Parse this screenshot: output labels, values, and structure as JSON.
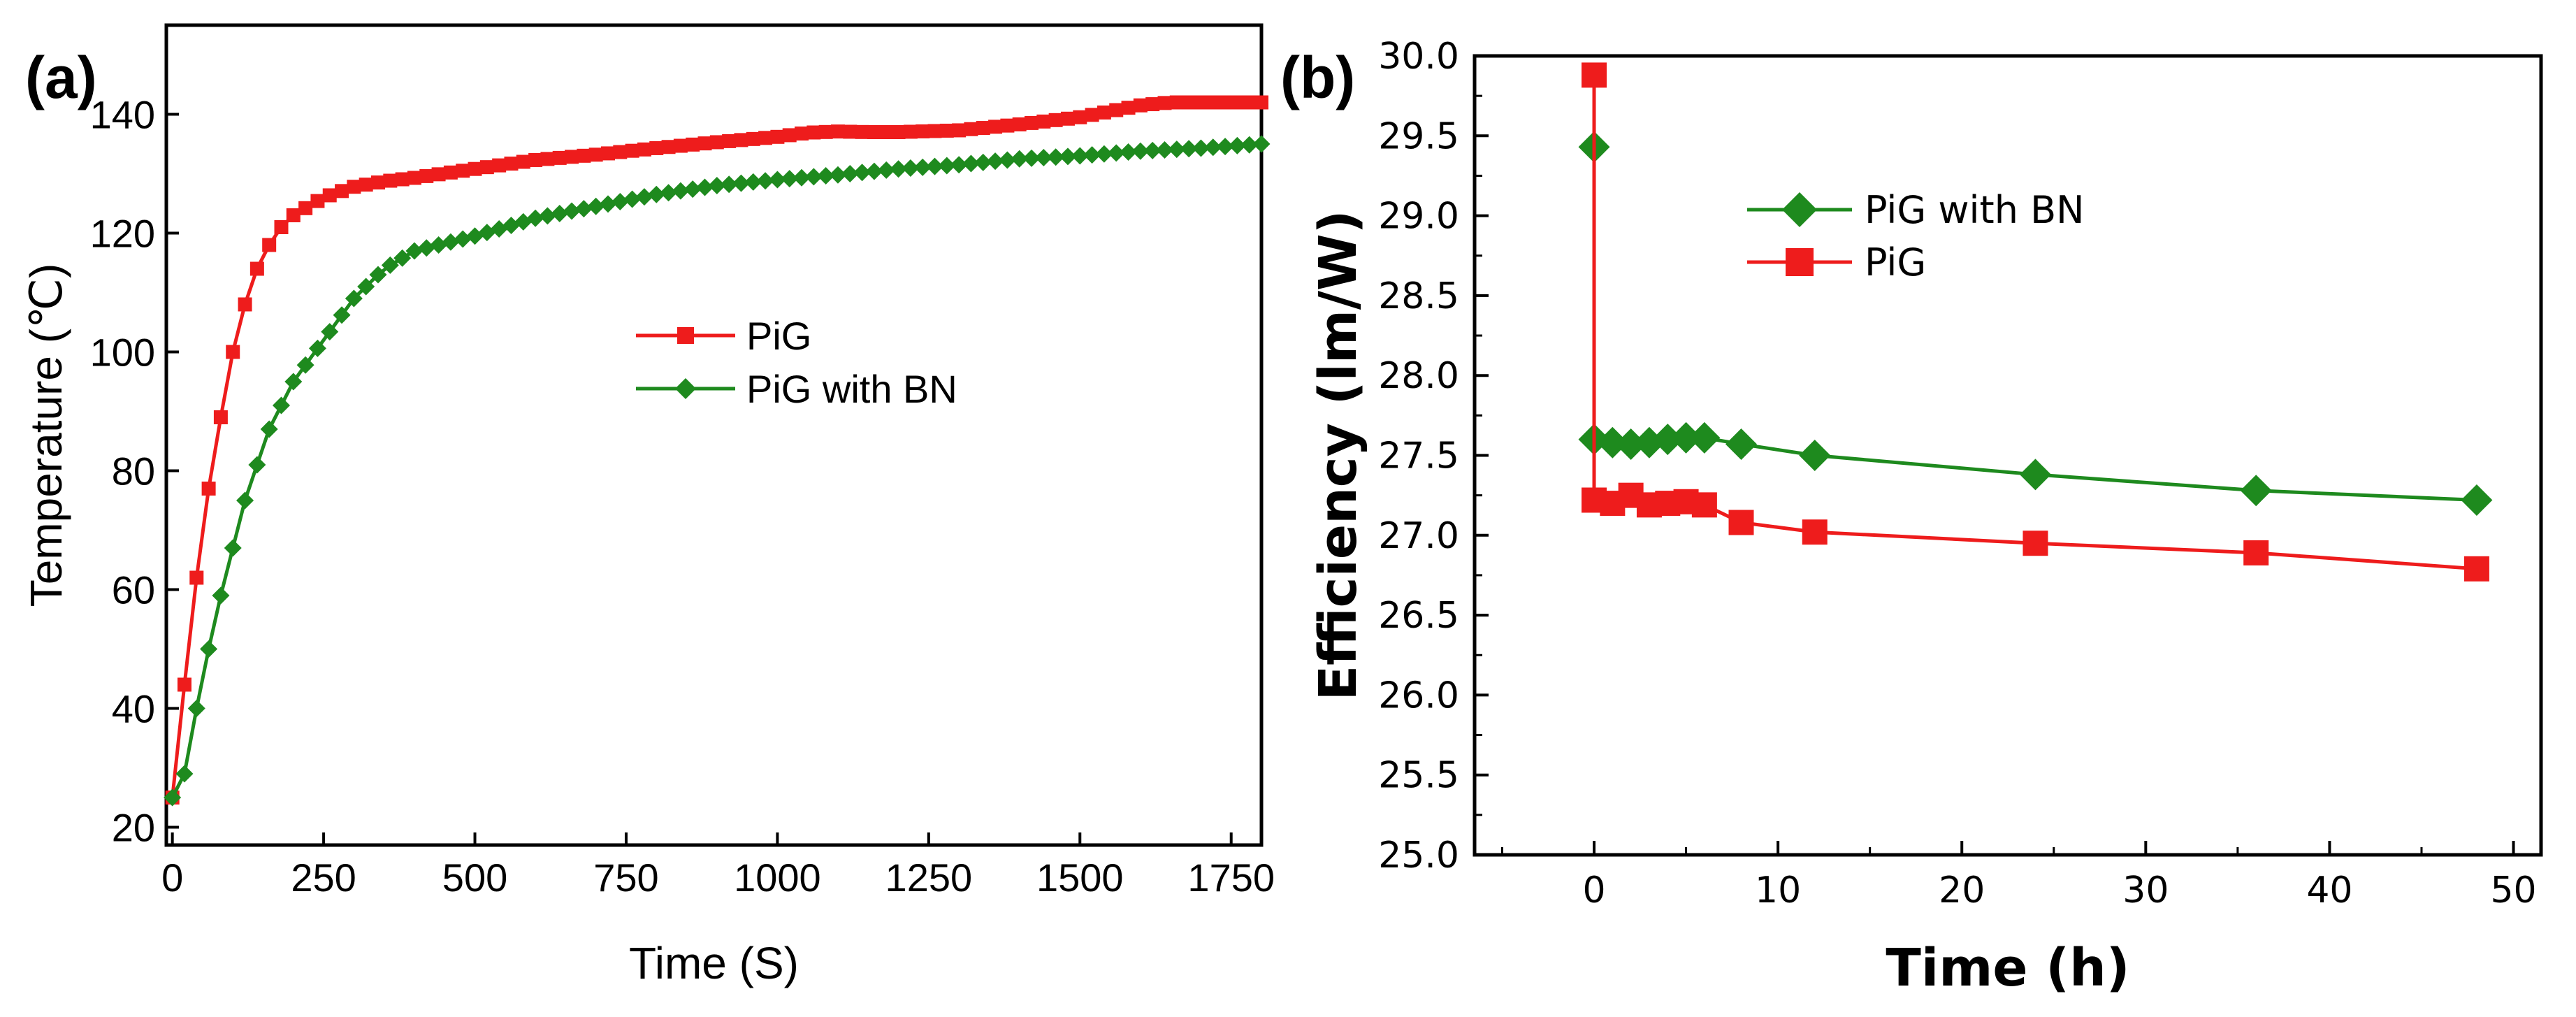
{
  "colors": {
    "pig": "#ee1c1c",
    "pig_bn": "#1e8a1e",
    "axis": "#000000"
  },
  "chart_data": [
    {
      "id": "a",
      "panel_label": "(a)",
      "type": "line",
      "xlabel": "Time (S)",
      "ylabel": "Temperature (℃)",
      "xlim": [
        -10,
        1800
      ],
      "ylim": [
        17,
        155
      ],
      "xticks": [
        0,
        250,
        500,
        750,
        1000,
        1250,
        1500,
        1750
      ],
      "yticks": [
        20,
        40,
        60,
        80,
        100,
        120,
        140
      ],
      "legend": [
        "PiG",
        "PiG with BN"
      ],
      "series": [
        {
          "name": "PiG",
          "color": "#ee1c1c",
          "marker": "square",
          "control": [
            [
              0,
              25
            ],
            [
              20,
              44
            ],
            [
              40,
              62
            ],
            [
              60,
              77
            ],
            [
              80,
              89
            ],
            [
              100,
              100
            ],
            [
              120,
              108
            ],
            [
              140,
              114
            ],
            [
              160,
              118
            ],
            [
              180,
              121
            ],
            [
              200,
              123
            ],
            [
              250,
              126
            ],
            [
              300,
              127.8
            ],
            [
              350,
              128.7
            ],
            [
              400,
              129.3
            ],
            [
              500,
              130.8
            ],
            [
              600,
              132.3
            ],
            [
              700,
              133.2
            ],
            [
              800,
              134.3
            ],
            [
              900,
              135.3
            ],
            [
              1000,
              136.2
            ],
            [
              1050,
              136.9
            ],
            [
              1100,
              137.1
            ],
            [
              1150,
              137
            ],
            [
              1200,
              137
            ],
            [
              1300,
              137.3
            ],
            [
              1400,
              138.3
            ],
            [
              1500,
              139.5
            ],
            [
              1550,
              140.5
            ],
            [
              1600,
              141.5
            ],
            [
              1650,
              142
            ],
            [
              1700,
              142
            ],
            [
              1800,
              142
            ]
          ]
        },
        {
          "name": "PiG with BN",
          "color": "#1e8a1e",
          "marker": "diamond",
          "control": [
            [
              0,
              25
            ],
            [
              20,
              29
            ],
            [
              40,
              40
            ],
            [
              60,
              50
            ],
            [
              80,
              59
            ],
            [
              100,
              67
            ],
            [
              120,
              75
            ],
            [
              140,
              81
            ],
            [
              160,
              87
            ],
            [
              180,
              91
            ],
            [
              200,
              95
            ],
            [
              250,
              102
            ],
            [
              300,
              109
            ],
            [
              350,
              114
            ],
            [
              400,
              117
            ],
            [
              500,
              119.5
            ],
            [
              600,
              122.5
            ],
            [
              700,
              124.5
            ],
            [
              800,
              126.5
            ],
            [
              900,
              128
            ],
            [
              1000,
              129
            ],
            [
              1100,
              129.8
            ],
            [
              1200,
              130.8
            ],
            [
              1300,
              131.5
            ],
            [
              1400,
              132.5
            ],
            [
              1500,
              133
            ],
            [
              1600,
              133.8
            ],
            [
              1700,
              134.3
            ],
            [
              1800,
              135
            ]
          ]
        }
      ]
    },
    {
      "id": "b",
      "panel_label": "(b)",
      "type": "line",
      "xlabel": "Time (h)",
      "ylabel": "Efficiency (lm/W)",
      "xlim": [
        -6.5,
        51.5
      ],
      "ylim": [
        25.0,
        30.0
      ],
      "xticks": [
        0,
        10,
        20,
        30,
        40,
        50
      ],
      "yticks": [
        "25.0",
        "25.5",
        "26.0",
        "26.5",
        "27.0",
        "27.5",
        "28.0",
        "28.5",
        "29.0",
        "29.5",
        "30.0"
      ],
      "legend": [
        "PiG with BN",
        "PiG"
      ],
      "series": [
        {
          "name": "PiG with BN",
          "color": "#1e8a1e",
          "marker": "diamond",
          "x": [
            0,
            0,
            1,
            2,
            3,
            4,
            5,
            6,
            8,
            12,
            24,
            36,
            48
          ],
          "y": [
            29.43,
            27.6,
            27.58,
            27.57,
            27.58,
            27.6,
            27.61,
            27.61,
            27.57,
            27.5,
            27.38,
            27.28,
            27.22
          ]
        },
        {
          "name": "PiG",
          "color": "#ee1c1c",
          "marker": "square",
          "x": [
            0,
            0,
            1,
            2,
            3,
            4,
            5,
            6,
            8,
            12,
            24,
            36,
            48
          ],
          "y": [
            29.88,
            27.22,
            27.2,
            27.25,
            27.19,
            27.2,
            27.21,
            27.19,
            27.08,
            27.02,
            26.95,
            26.89,
            26.79
          ]
        }
      ]
    }
  ]
}
